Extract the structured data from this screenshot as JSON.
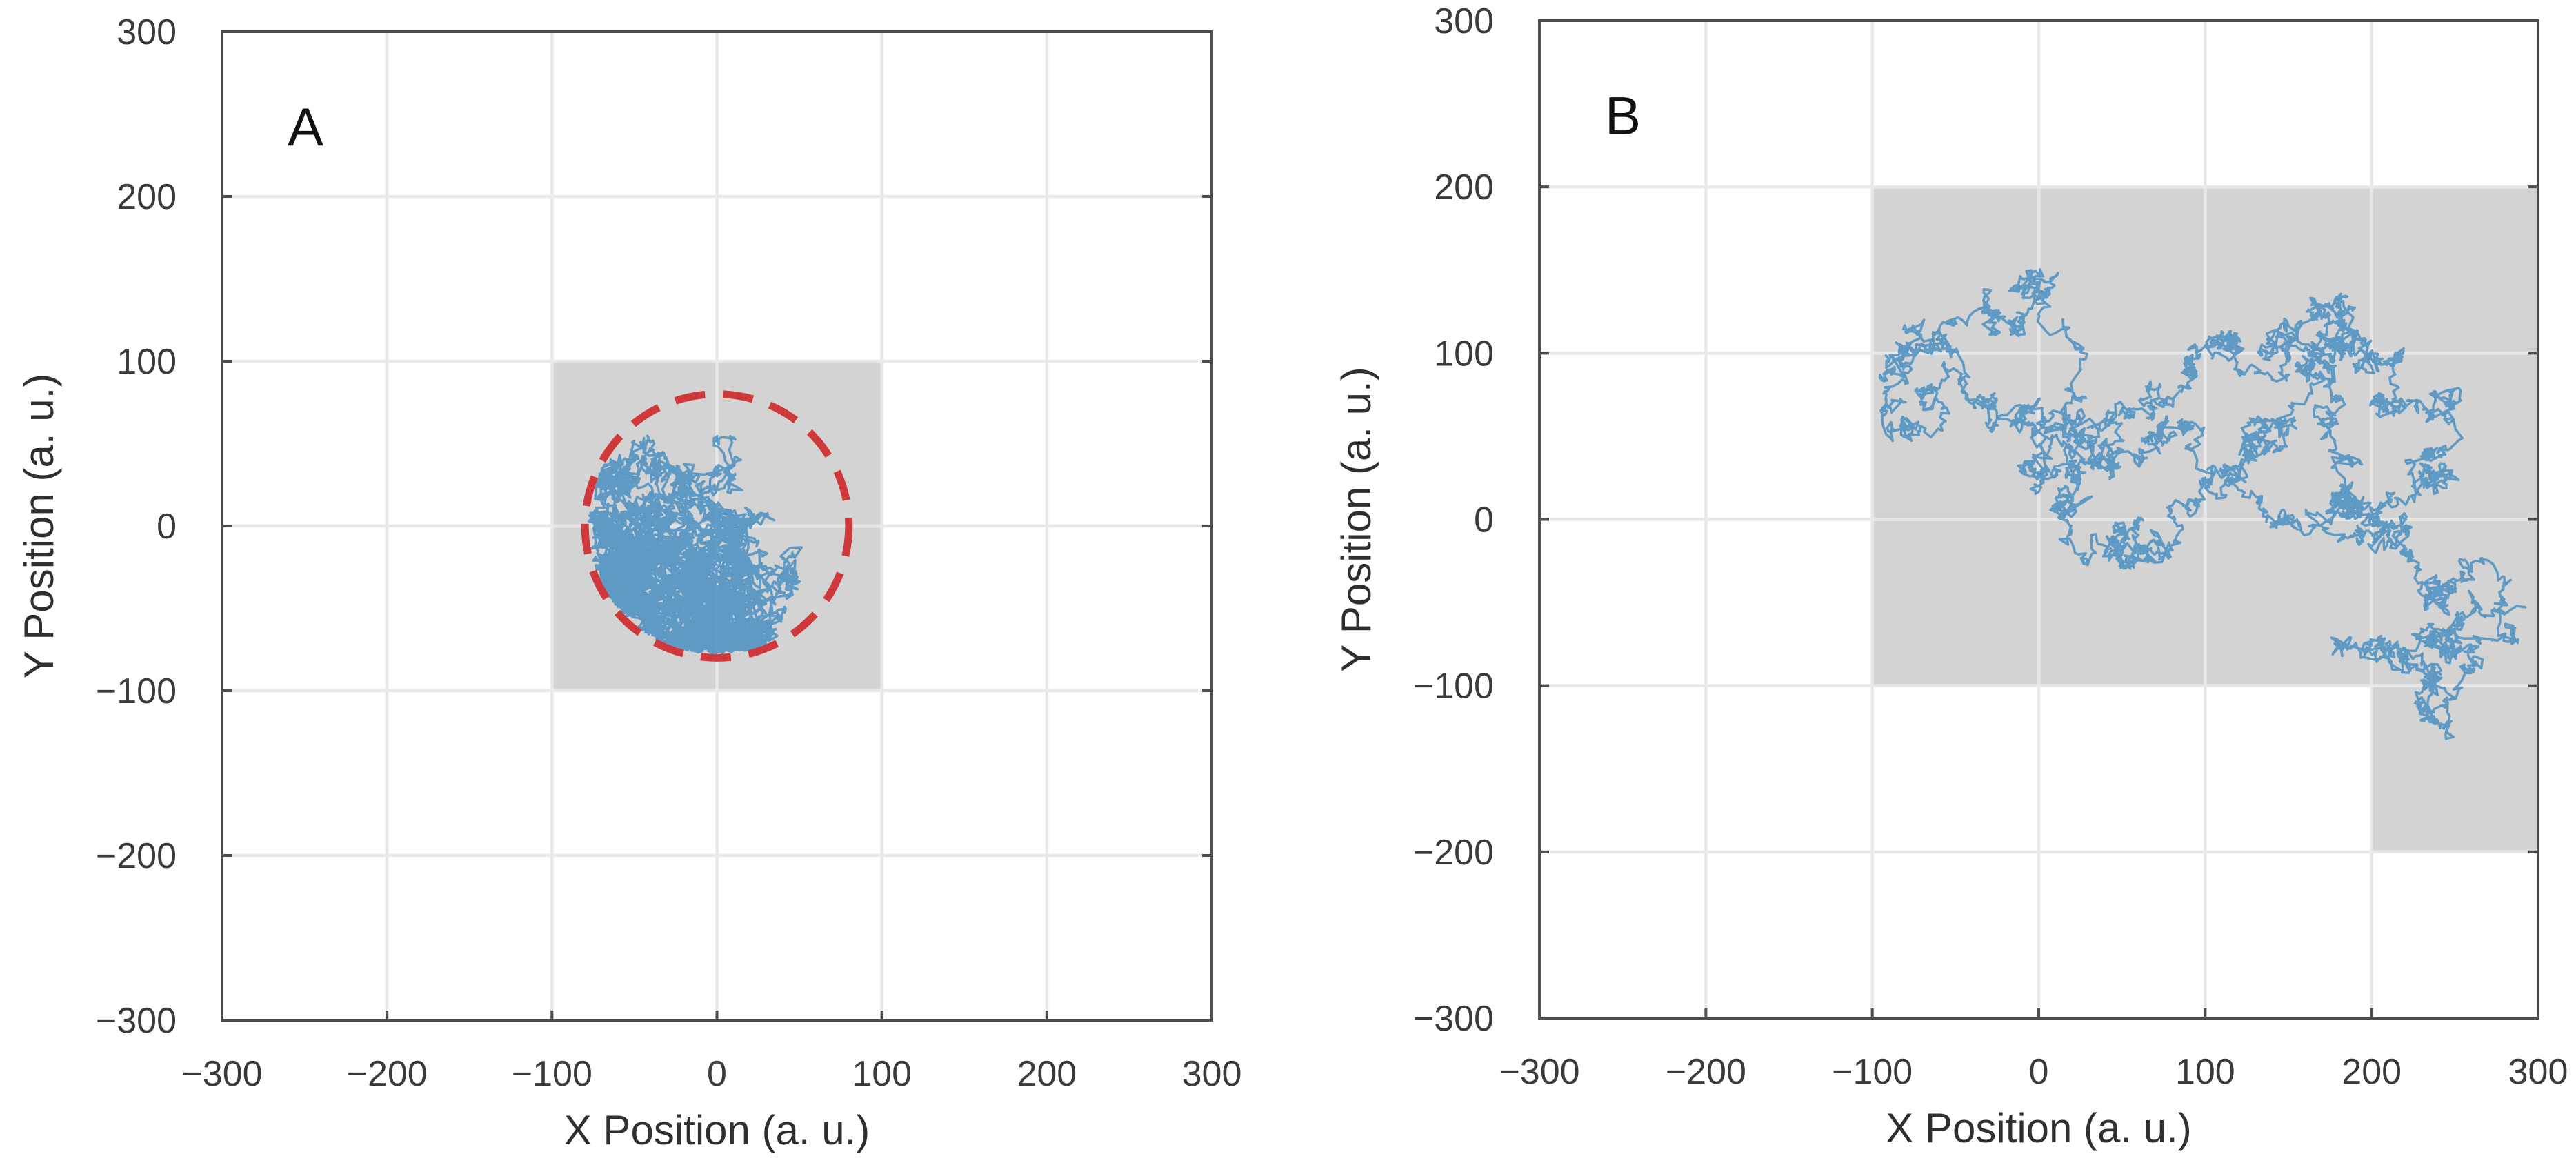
{
  "colors": {
    "trajectory": "#4a8fc2",
    "cell": "#d3d3d3",
    "boundary_circle": "#d0393b",
    "grid": "#d9d9d9",
    "axes": "#4d4d4d"
  },
  "chart_data": [
    {
      "type": "line",
      "panel_label": "A",
      "xlabel": "X Position (a. u.)",
      "ylabel": "Y Position (a. u.)",
      "xlim": [
        -300,
        300
      ],
      "ylim": [
        -300,
        300
      ],
      "xticks": [
        -300,
        -200,
        -100,
        0,
        100,
        200,
        300
      ],
      "yticks": [
        -300,
        -200,
        -100,
        0,
        100,
        200,
        300
      ],
      "xtick_labels": [
        "−300",
        "−200",
        "−100",
        "0",
        "100",
        "200",
        "300"
      ],
      "ytick_labels": [
        "−300",
        "−200",
        "−100",
        "0",
        "100",
        "200",
        "300"
      ],
      "grid": true,
      "shaded_cells": [
        {
          "x0": -100,
          "x1": 100,
          "y0": -100,
          "y1": 100
        }
      ],
      "boundary_circle": {
        "cx": 0,
        "cy": 0,
        "r": 80,
        "style": "dashed"
      },
      "trajectory": {
        "kind": "random-walk",
        "bounded_radius": 78,
        "start": [
          0,
          0
        ]
      }
    },
    {
      "type": "line",
      "panel_label": "B",
      "xlabel": "X Position (a. u.)",
      "ylabel": "Y Position (a. u.)",
      "xlim": [
        -300,
        300
      ],
      "ylim": [
        -300,
        300
      ],
      "xticks": [
        -300,
        -200,
        -100,
        0,
        100,
        200,
        300
      ],
      "yticks": [
        -300,
        -200,
        -100,
        0,
        100,
        200,
        300
      ],
      "xtick_labels": [
        "−300",
        "−200",
        "−100",
        "0",
        "100",
        "200",
        "300"
      ],
      "ytick_labels": [
        "−300",
        "−200",
        "−100",
        "0",
        "100",
        "200",
        "300"
      ],
      "grid": true,
      "shaded_cells": [
        {
          "x0": -100,
          "x1": 0,
          "y0": 100,
          "y1": 200
        },
        {
          "x0": 0,
          "x1": 100,
          "y0": 100,
          "y1": 200
        },
        {
          "x0": 100,
          "x1": 200,
          "y0": 100,
          "y1": 200
        },
        {
          "x0": 200,
          "x1": 300,
          "y0": 100,
          "y1": 200
        },
        {
          "x0": -100,
          "x1": 0,
          "y0": 0,
          "y1": 100
        },
        {
          "x0": 0,
          "x1": 100,
          "y0": 0,
          "y1": 100
        },
        {
          "x0": 100,
          "x1": 200,
          "y0": 0,
          "y1": 100
        },
        {
          "x0": 200,
          "x1": 300,
          "y0": 0,
          "y1": 100
        },
        {
          "x0": -100,
          "x1": 0,
          "y0": -100,
          "y1": 0
        },
        {
          "x0": 0,
          "x1": 100,
          "y0": -100,
          "y1": 0
        },
        {
          "x0": 100,
          "x1": 200,
          "y0": -100,
          "y1": 0
        },
        {
          "x0": 200,
          "x1": 300,
          "y0": -100,
          "y1": 0
        },
        {
          "x0": 200,
          "x1": 300,
          "y0": -200,
          "y1": -100
        }
      ],
      "trajectory": {
        "kind": "random-walk",
        "waypoints": [
          [
            -90,
            90
          ],
          [
            -30,
            120
          ],
          [
            0,
            145
          ],
          [
            20,
            80
          ],
          [
            50,
            60
          ],
          [
            90,
            95
          ],
          [
            120,
            110
          ],
          [
            140,
            105
          ],
          [
            175,
            130
          ],
          [
            195,
            100
          ],
          [
            210,
            65
          ],
          [
            250,
            60
          ],
          [
            240,
            25
          ],
          [
            205,
            0
          ],
          [
            160,
            5
          ],
          [
            185,
            35
          ],
          [
            175,
            85
          ],
          [
            180,
            130
          ],
          [
            170,
            110
          ],
          [
            145,
            60
          ],
          [
            120,
            40
          ],
          [
            80,
            10
          ],
          [
            60,
            -25
          ],
          [
            40,
            -20
          ],
          [
            25,
            10
          ],
          [
            -10,
            30
          ],
          [
            -40,
            70
          ],
          [
            -80,
            100
          ],
          [
            -60,
            60
          ],
          [
            -10,
            60
          ],
          [
            20,
            30
          ],
          [
            35,
            60
          ],
          [
            70,
            55
          ],
          [
            100,
            20
          ],
          [
            150,
            0
          ],
          [
            220,
            -5
          ],
          [
            240,
            -40
          ],
          [
            280,
            -40
          ],
          [
            250,
            -75
          ],
          [
            205,
            -70
          ],
          [
            240,
            -95
          ],
          [
            245,
            -125
          ],
          [
            265,
            -90
          ],
          [
            290,
            -50
          ]
        ]
      }
    }
  ]
}
